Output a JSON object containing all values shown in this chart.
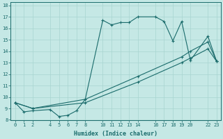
{
  "xlabel": "Humidex (Indice chaleur)",
  "background_color": "#c5e8e5",
  "line_color": "#1a6b6b",
  "xlim": [
    -0.5,
    23.5
  ],
  "ylim": [
    8.0,
    18.3
  ],
  "xticks": [
    0,
    1,
    2,
    4,
    5,
    6,
    7,
    8,
    10,
    11,
    12,
    13,
    14,
    16,
    17,
    18,
    19,
    20,
    22,
    23
  ],
  "yticks": [
    8,
    9,
    10,
    11,
    12,
    13,
    14,
    15,
    16,
    17,
    18
  ],
  "line1_x": [
    0,
    1,
    2,
    4,
    5,
    6,
    7,
    8,
    10,
    11,
    12,
    13,
    14,
    16,
    17,
    18,
    19,
    20,
    22,
    23
  ],
  "line1_y": [
    9.5,
    8.7,
    8.8,
    8.9,
    8.3,
    8.4,
    8.8,
    9.8,
    16.7,
    16.3,
    16.5,
    16.5,
    17.0,
    17.0,
    16.6,
    14.9,
    16.6,
    13.2,
    15.3,
    13.1
  ],
  "line2_x": [
    0,
    2,
    8,
    14,
    19,
    20,
    22,
    23
  ],
  "line2_y": [
    9.5,
    9.0,
    9.8,
    11.8,
    13.5,
    14.0,
    14.8,
    13.1
  ],
  "line3_x": [
    0,
    2,
    8,
    14,
    19,
    20,
    22,
    23
  ],
  "line3_y": [
    9.5,
    9.0,
    9.5,
    11.3,
    13.0,
    13.4,
    14.2,
    13.1
  ]
}
